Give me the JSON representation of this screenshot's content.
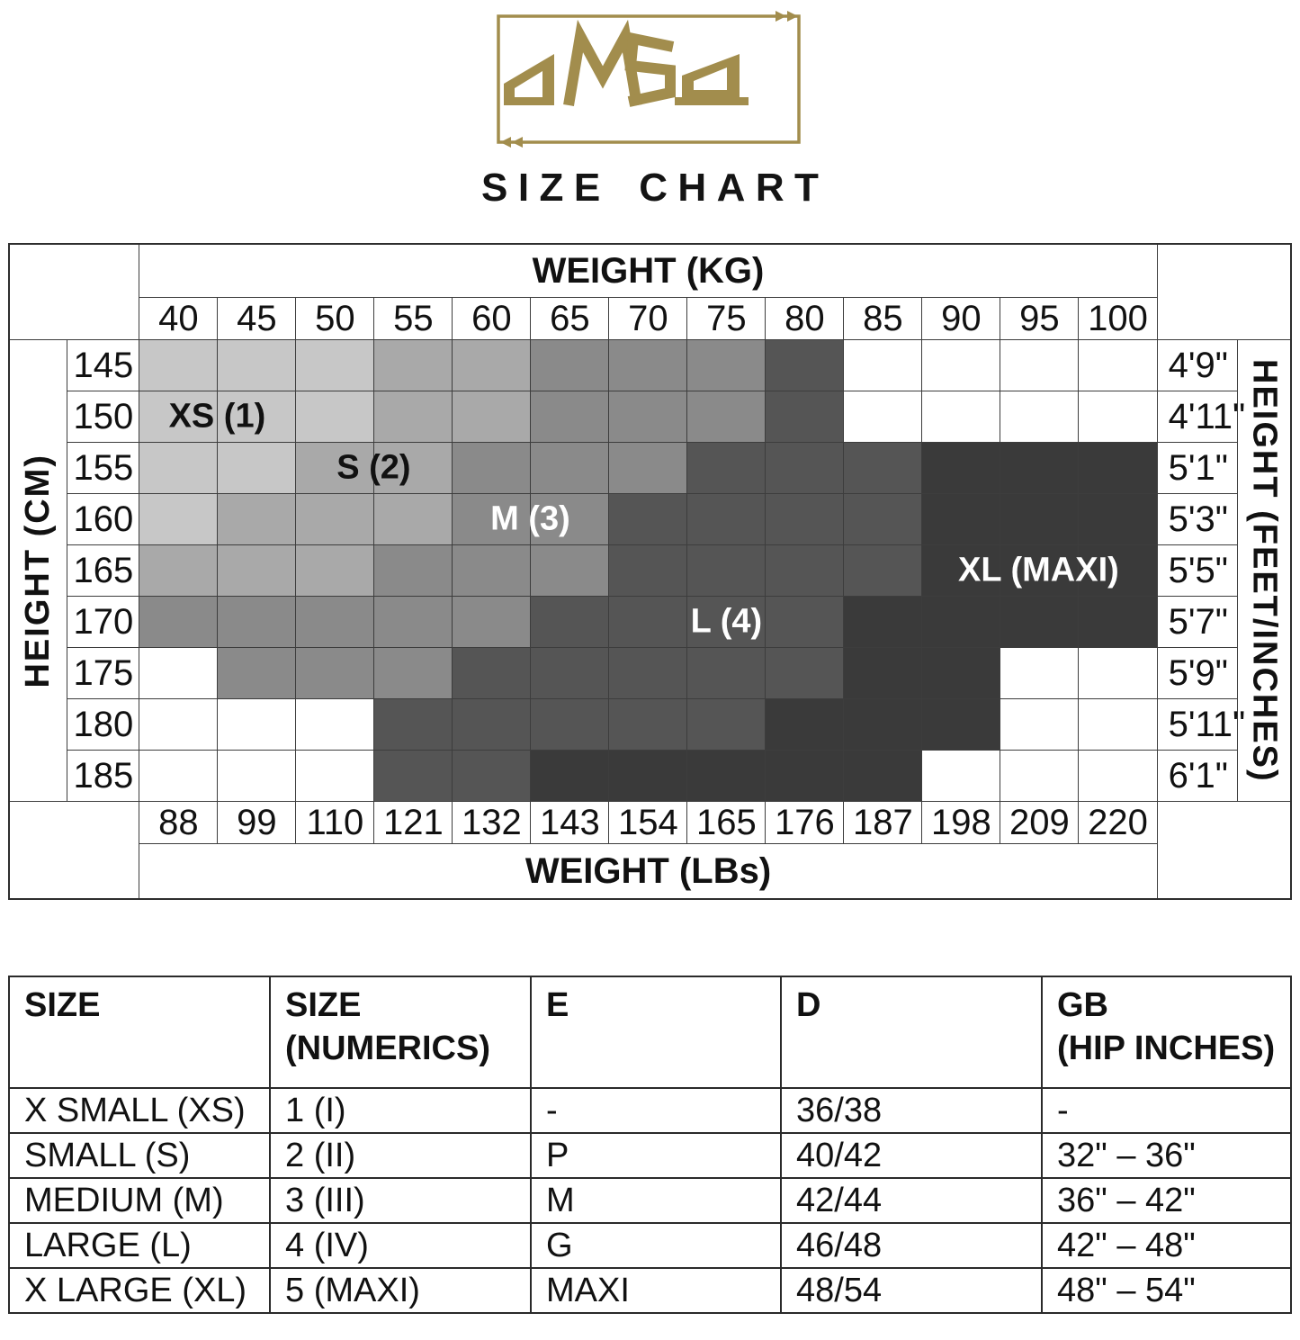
{
  "logo": {
    "brand": "OMSA",
    "title": "SIZE CHART",
    "gold": "#a28d4d"
  },
  "grid": {
    "weight_kg_label": "WEIGHT (KG)",
    "weight_lbs_label": "WEIGHT (LBs)",
    "height_cm_label": "HEIGHT (CM)",
    "height_ftin_label": "HEIGHT (FEET/INCHES)"
  },
  "chart_data": {
    "type": "heatmap",
    "title": "OMSA SIZE CHART",
    "x_weight_kg": [
      "40",
      "45",
      "50",
      "55",
      "60",
      "65",
      "70",
      "75",
      "80",
      "85",
      "90",
      "95",
      "100"
    ],
    "x_weight_lbs": [
      "88",
      "99",
      "110",
      "121",
      "132",
      "143",
      "154",
      "165",
      "176",
      "187",
      "198",
      "209",
      "220"
    ],
    "y_height_cm": [
      "145",
      "150",
      "155",
      "160",
      "165",
      "170",
      "175",
      "180",
      "185"
    ],
    "y_height_ftin": [
      "4'9\"",
      "4'11\"",
      "5'1\"",
      "5'3\"",
      "5'5\"",
      "5'7\"",
      "5'9\"",
      "5'11\"",
      "6'1\""
    ],
    "sizes": [
      "XS",
      "S",
      "M",
      "L",
      "XL"
    ],
    "shades": {
      "XS": "#c7c7c7",
      "S": "#a9a9a9",
      "M": "#8a8a8a",
      "L": "#555555",
      "XL": "#3a3a3a",
      "W": "#ffffff"
    },
    "cells": [
      [
        "XS",
        "XS",
        "XS",
        "S",
        "S",
        "M",
        "M",
        "M",
        "L",
        "W",
        "W",
        "W",
        "W"
      ],
      [
        "XS",
        "XS",
        "XS",
        "S",
        "S",
        "M",
        "M",
        "M",
        "L",
        "W",
        "W",
        "W",
        "W"
      ],
      [
        "XS",
        "XS",
        "S",
        "S",
        "M",
        "M",
        "M",
        "L",
        "L",
        "L",
        "XL",
        "XL",
        "XL"
      ],
      [
        "XS",
        "S",
        "S",
        "S",
        "M",
        "M",
        "L",
        "L",
        "L",
        "L",
        "XL",
        "XL",
        "XL"
      ],
      [
        "S",
        "S",
        "S",
        "M",
        "M",
        "M",
        "L",
        "L",
        "L",
        "L",
        "XL",
        "XL",
        "XL"
      ],
      [
        "M",
        "M",
        "M",
        "M",
        "M",
        "L",
        "L",
        "L",
        "L",
        "XL",
        "XL",
        "XL",
        "XL"
      ],
      [
        "W",
        "M",
        "M",
        "M",
        "L",
        "L",
        "L",
        "L",
        "L",
        "XL",
        "XL",
        "W",
        "W"
      ],
      [
        "W",
        "W",
        "W",
        "L",
        "L",
        "L",
        "L",
        "L",
        "XL",
        "XL",
        "XL",
        "W",
        "W"
      ],
      [
        "W",
        "W",
        "W",
        "L",
        "L",
        "XL",
        "XL",
        "XL",
        "XL",
        "XL",
        "W",
        "W",
        "W"
      ]
    ],
    "region_labels": [
      {
        "id": "xs",
        "text": "XS (1)",
        "row": 1,
        "col": 0,
        "span": 2,
        "color": "#111111"
      },
      {
        "id": "s",
        "text": "S (2)",
        "row": 2,
        "col": 2,
        "span": 2,
        "color": "#111111"
      },
      {
        "id": "m",
        "text": "M (3)",
        "row": 3,
        "col": 4,
        "span": 2,
        "color": "#ffffff"
      },
      {
        "id": "xl",
        "text": "XL (MAXI)",
        "row": 4,
        "col": 10,
        "span": 3,
        "color": "#ffffff"
      },
      {
        "id": "l",
        "text": "L (4)",
        "row": 5,
        "col": 7,
        "span": 1,
        "color": "#ffffff"
      }
    ]
  },
  "size_table": {
    "headers": [
      [
        "SIZE",
        ""
      ],
      [
        "SIZE",
        "(NUMERICS)"
      ],
      [
        "E",
        ""
      ],
      [
        "D",
        ""
      ],
      [
        "GB",
        "(HIP INCHES)"
      ]
    ],
    "rows": [
      [
        "X SMALL (XS)",
        "1 (I)",
        "-",
        "36/38",
        "-"
      ],
      [
        "SMALL (S)",
        "2 (II)",
        "P",
        "40/42",
        "32\" – 36\""
      ],
      [
        "MEDIUM (M)",
        "3 (III)",
        "M",
        "42/44",
        "36\" – 42\""
      ],
      [
        "LARGE (L)",
        "4 (IV)",
        "G",
        "46/48",
        "42\" – 48\""
      ],
      [
        "X LARGE (XL)",
        "5 (MAXI)",
        "MAXI",
        "48/54",
        "48\" – 54\""
      ]
    ]
  }
}
